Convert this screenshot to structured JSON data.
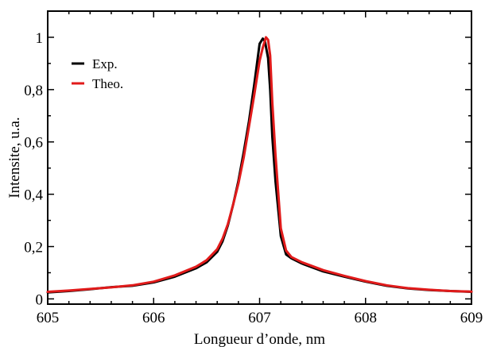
{
  "chart_data": {
    "type": "line",
    "xlabel": "Longueur d’onde, nm",
    "ylabel": "Intensite, u.a.",
    "xlim": [
      605,
      609
    ],
    "ylim": [
      -0.02,
      1.1
    ],
    "grid": false,
    "legend_position": "top-left",
    "x_ticks": [
      605,
      606,
      607,
      608,
      609
    ],
    "x_tick_labels": [
      "605",
      "606",
      "607",
      "608",
      "609"
    ],
    "y_ticks": [
      0,
      0.2,
      0.4,
      0.6,
      0.8,
      1
    ],
    "y_tick_labels": [
      "0",
      "0,2",
      "0,4",
      "0,6",
      "0,8",
      "1"
    ],
    "series": [
      {
        "name": "Exp.",
        "color": "#000000",
        "x": [
          605.0,
          605.2,
          605.4,
          605.6,
          605.8,
          606.0,
          606.2,
          606.4,
          606.5,
          606.6,
          606.65,
          606.7,
          606.75,
          606.8,
          606.85,
          606.9,
          606.95,
          607.0,
          607.03,
          607.05,
          607.08,
          607.1,
          607.12,
          607.15,
          607.2,
          607.25,
          607.3,
          607.4,
          607.6,
          607.8,
          608.0,
          608.2,
          608.4,
          608.6,
          608.8,
          609.0
        ],
        "y": [
          0.025,
          0.03,
          0.037,
          0.045,
          0.05,
          0.063,
          0.085,
          0.117,
          0.14,
          0.18,
          0.22,
          0.28,
          0.36,
          0.45,
          0.56,
          0.68,
          0.82,
          0.975,
          0.995,
          0.985,
          0.92,
          0.8,
          0.62,
          0.45,
          0.24,
          0.17,
          0.155,
          0.135,
          0.105,
          0.085,
          0.066,
          0.05,
          0.04,
          0.034,
          0.03,
          0.027
        ]
      },
      {
        "name": "Theo.",
        "color": "#e11b1b",
        "x": [
          605.0,
          605.2,
          605.4,
          605.6,
          605.8,
          606.0,
          606.2,
          606.4,
          606.5,
          606.6,
          606.65,
          606.7,
          606.75,
          606.8,
          606.85,
          606.9,
          606.95,
          607.0,
          607.03,
          607.06,
          607.08,
          607.1,
          607.12,
          607.15,
          607.2,
          607.25,
          607.3,
          607.4,
          607.6,
          607.8,
          608.0,
          608.2,
          608.4,
          608.6,
          608.8,
          609.0
        ],
        "y": [
          0.027,
          0.032,
          0.038,
          0.044,
          0.052,
          0.066,
          0.09,
          0.123,
          0.148,
          0.19,
          0.23,
          0.285,
          0.36,
          0.44,
          0.54,
          0.66,
          0.78,
          0.91,
          0.96,
          1.0,
          0.99,
          0.93,
          0.75,
          0.55,
          0.27,
          0.185,
          0.16,
          0.14,
          0.11,
          0.088,
          0.068,
          0.052,
          0.041,
          0.035,
          0.03,
          0.028
        ]
      }
    ]
  }
}
